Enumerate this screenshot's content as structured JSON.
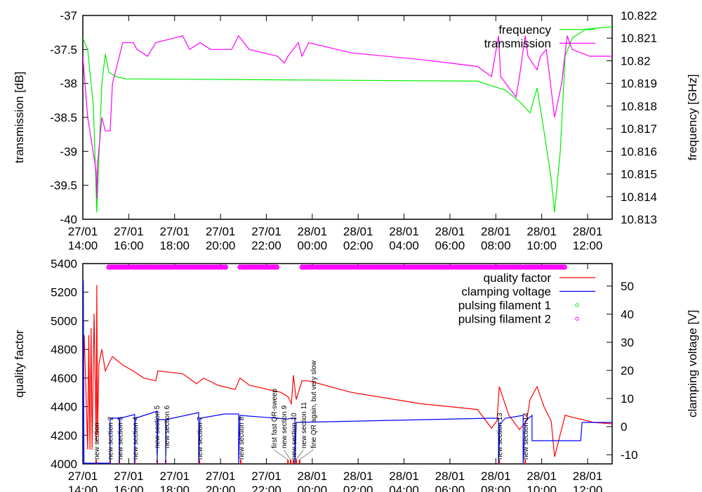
{
  "chart_data": [
    {
      "type": "line",
      "title": "",
      "xlabel": "",
      "ylabel": "transmission [dB]",
      "y2label": "frequency [GHz]",
      "x_unit": "hours since 27/01 14:00",
      "xlim": [
        0,
        23.07
      ],
      "ylim": [
        -40,
        -37
      ],
      "y2lim": [
        10.813,
        10.822
      ],
      "xticks": [
        {
          "v": 0,
          "d": "27/01",
          "t": "14:00"
        },
        {
          "v": 2,
          "d": "27/01",
          "t": "16:00"
        },
        {
          "v": 4,
          "d": "27/01",
          "t": "18:00"
        },
        {
          "v": 6,
          "d": "27/01",
          "t": "20:00"
        },
        {
          "v": 8,
          "d": "27/01",
          "t": "22:00"
        },
        {
          "v": 10,
          "d": "28/01",
          "t": "00:00"
        },
        {
          "v": 12,
          "d": "28/01",
          "t": "02:00"
        },
        {
          "v": 14,
          "d": "28/01",
          "t": "04:00"
        },
        {
          "v": 16,
          "d": "28/01",
          "t": "06:00"
        },
        {
          "v": 18,
          "d": "28/01",
          "t": "08:00"
        },
        {
          "v": 20,
          "d": "28/01",
          "t": "10:00"
        },
        {
          "v": 22,
          "d": "28/01",
          "t": "12:00"
        }
      ],
      "yticks": [
        "-37",
        "-37.5",
        "-38",
        "-38.5",
        "-39",
        "-39.5",
        "-40"
      ],
      "y2ticks": [
        "10.822",
        "10.821",
        "10.82",
        "10.819",
        "10.818",
        "10.817",
        "10.816",
        "10.815",
        "10.814",
        "10.813"
      ],
      "legend_position": "top-right",
      "series": [
        {
          "name": "frequency",
          "axis": "y2",
          "color": "#00ee00",
          "points": [
            [
              0,
              10.821
            ],
            [
              0.21,
              10.8205
            ],
            [
              0.46,
              10.818
            ],
            [
              0.61,
              10.8133
            ],
            [
              0.83,
              10.819
            ],
            [
              0.98,
              10.8203
            ],
            [
              1.13,
              10.8195
            ],
            [
              1.44,
              10.8193
            ],
            [
              1.9,
              10.8192
            ],
            [
              17.2,
              10.8191
            ],
            [
              17.81,
              10.8189
            ],
            [
              18.42,
              10.8187
            ],
            [
              19.03,
              10.8182
            ],
            [
              19.49,
              10.8177
            ],
            [
              19.8,
              10.8188
            ],
            [
              20.1,
              10.8169
            ],
            [
              20.41,
              10.8148
            ],
            [
              20.56,
              10.8133
            ],
            [
              20.81,
              10.816
            ],
            [
              21.02,
              10.8202
            ],
            [
              21.33,
              10.821
            ],
            [
              21.94,
              10.8214
            ],
            [
              23.07,
              10.8215
            ]
          ]
        },
        {
          "name": "transmission",
          "axis": "y",
          "color": "#ff00ff",
          "points": [
            [
              0,
              -37.6
            ],
            [
              0.21,
              -38.5
            ],
            [
              0.4,
              -38.9
            ],
            [
              0.58,
              -39.3
            ],
            [
              0.61,
              -39.7
            ],
            [
              0.64,
              -39.2
            ],
            [
              0.83,
              -38.5
            ],
            [
              0.98,
              -38.7
            ],
            [
              1.19,
              -38.7
            ],
            [
              1.29,
              -38.0
            ],
            [
              1.74,
              -37.4
            ],
            [
              2.2,
              -37.4
            ],
            [
              2.36,
              -37.5
            ],
            [
              2.82,
              -37.6
            ],
            [
              3.18,
              -37.4
            ],
            [
              4.35,
              -37.3
            ],
            [
              4.65,
              -37.5
            ],
            [
              5.11,
              -37.4
            ],
            [
              5.57,
              -37.5
            ],
            [
              6.49,
              -37.5
            ],
            [
              6.79,
              -37.3
            ],
            [
              7.25,
              -37.5
            ],
            [
              8.48,
              -37.6
            ],
            [
              8.78,
              -37.7
            ],
            [
              8.94,
              -37.6
            ],
            [
              9.39,
              -37.4
            ],
            [
              9.55,
              -37.6
            ],
            [
              9.85,
              -37.4
            ],
            [
              11.69,
              -37.55
            ],
            [
              14.75,
              -37.65
            ],
            [
              17.2,
              -37.75
            ],
            [
              17.81,
              -37.9
            ],
            [
              18.12,
              -37.3
            ],
            [
              18.21,
              -37.9
            ],
            [
              18.88,
              -38.2
            ],
            [
              19.03,
              -37.9
            ],
            [
              19.28,
              -37.3
            ],
            [
              19.4,
              -37.6
            ],
            [
              19.8,
              -37.8
            ],
            [
              19.95,
              -37.6
            ],
            [
              20.2,
              -37.5
            ],
            [
              20.56,
              -38.5
            ],
            [
              20.87,
              -38.0
            ],
            [
              21.11,
              -37.3
            ],
            [
              21.33,
              -37.5
            ],
            [
              22.09,
              -37.6
            ],
            [
              23.07,
              -37.6
            ]
          ]
        }
      ]
    },
    {
      "type": "line",
      "title": "",
      "xlabel": "",
      "ylabel": "quality factor",
      "y2label": "clamping voltage [V]",
      "x_unit": "hours since 27/01 14:00",
      "xlim": [
        0,
        23.07
      ],
      "ylim": [
        4000,
        5400
      ],
      "y2lim": [
        -13.25,
        58
      ],
      "xticks": [
        {
          "v": 0,
          "d": "27/01",
          "t": "14:00"
        },
        {
          "v": 2,
          "d": "27/01",
          "t": "16:00"
        },
        {
          "v": 4,
          "d": "27/01",
          "t": "18:00"
        },
        {
          "v": 6,
          "d": "27/01",
          "t": "20:00"
        },
        {
          "v": 8,
          "d": "27/01",
          "t": "22:00"
        },
        {
          "v": 10,
          "d": "28/01",
          "t": "00:00"
        },
        {
          "v": 12,
          "d": "28/01",
          "t": "02:00"
        },
        {
          "v": 14,
          "d": "28/01",
          "t": "04:00"
        },
        {
          "v": 16,
          "d": "28/01",
          "t": "06:00"
        },
        {
          "v": 18,
          "d": "28/01",
          "t": "08:00"
        },
        {
          "v": 20,
          "d": "28/01",
          "t": "10:00"
        },
        {
          "v": 22,
          "d": "28/01",
          "t": "12:00"
        }
      ],
      "yticks": [
        "5400",
        "5200",
        "5000",
        "4800",
        "4600",
        "4400",
        "4200",
        "4000"
      ],
      "y2ticks": [
        "50",
        "40",
        "30",
        "20",
        "10",
        "0",
        "-10"
      ],
      "legend_position": "top-right",
      "series": [
        {
          "name": "quality factor",
          "axis": "y",
          "color": "#ff0000",
          "points": [
            [
              0,
              4500
            ],
            [
              0.06,
              4900
            ],
            [
              0.21,
              4100
            ],
            [
              0.26,
              4900
            ],
            [
              0.31,
              4100
            ],
            [
              0.36,
              4950
            ],
            [
              0.4,
              4100
            ],
            [
              0.49,
              5050
            ],
            [
              0.58,
              4150
            ],
            [
              0.61,
              5250
            ],
            [
              0.64,
              4200
            ],
            [
              0.7,
              4700
            ],
            [
              0.83,
              4800
            ],
            [
              0.98,
              4650
            ],
            [
              1.13,
              4700
            ],
            [
              1.29,
              4750
            ],
            [
              1.74,
              4690
            ],
            [
              2.2,
              4650
            ],
            [
              2.66,
              4600
            ],
            [
              3.18,
              4580
            ],
            [
              3.27,
              4650
            ],
            [
              4.35,
              4630
            ],
            [
              4.96,
              4560
            ],
            [
              5.26,
              4600
            ],
            [
              5.88,
              4550
            ],
            [
              6.64,
              4520
            ],
            [
              6.85,
              4600
            ],
            [
              7.25,
              4550
            ],
            [
              8.63,
              4500
            ],
            [
              8.94,
              4470
            ],
            [
              9.09,
              4420
            ],
            [
              9.18,
              4620
            ],
            [
              9.3,
              4450
            ],
            [
              9.55,
              4580
            ],
            [
              9.85,
              4580
            ],
            [
              11.69,
              4500
            ],
            [
              14.75,
              4420
            ],
            [
              17.2,
              4380
            ],
            [
              17.81,
              4250
            ],
            [
              18.05,
              4300
            ],
            [
              18.15,
              4540
            ],
            [
              18.57,
              4340
            ],
            [
              19.03,
              4240
            ],
            [
              19.34,
              4300
            ],
            [
              19.49,
              4450
            ],
            [
              19.8,
              4540
            ],
            [
              20.1,
              4400
            ],
            [
              20.41,
              4300
            ],
            [
              20.56,
              4050
            ],
            [
              20.72,
              4150
            ],
            [
              21.02,
              4340
            ],
            [
              21.48,
              4320
            ],
            [
              21.79,
              4310
            ],
            [
              22.25,
              4290
            ],
            [
              23.07,
              4280
            ]
          ]
        },
        {
          "name": "clamping voltage",
          "axis": "y2",
          "color": "#0000ff",
          "points": [
            [
              0,
              -13
            ],
            [
              0.02,
              52
            ],
            [
              0.05,
              -13
            ],
            [
              1.19,
              -13
            ],
            [
              1.19,
              3
            ],
            [
              1.59,
              3
            ],
            [
              1.59,
              -13
            ],
            [
              1.62,
              3
            ],
            [
              2.26,
              4.3
            ],
            [
              2.26,
              -13
            ],
            [
              2.29,
              3
            ],
            [
              3.24,
              5.5
            ],
            [
              3.24,
              -13
            ],
            [
              3.27,
              2.5
            ],
            [
              3.61,
              2.5
            ],
            [
              3.61,
              -13
            ],
            [
              3.63,
              2.5
            ],
            [
              5.05,
              5
            ],
            [
              5.05,
              -13
            ],
            [
              5.11,
              3
            ],
            [
              6.18,
              4.5
            ],
            [
              6.79,
              4.5
            ],
            [
              6.79,
              -13
            ],
            [
              6.85,
              4
            ],
            [
              8.94,
              2.7
            ],
            [
              9.09,
              3
            ],
            [
              9.24,
              3
            ],
            [
              9.24,
              -13
            ],
            [
              9.3,
              1.5
            ],
            [
              17.81,
              3
            ],
            [
              18.12,
              3
            ],
            [
              18.12,
              -13
            ],
            [
              18.18,
              1
            ],
            [
              18.42,
              3
            ],
            [
              19.19,
              4
            ],
            [
              19.19,
              -13
            ],
            [
              19.28,
              2
            ],
            [
              19.58,
              4
            ],
            [
              19.58,
              -5
            ],
            [
              21.7,
              -5
            ],
            [
              21.76,
              1.5
            ],
            [
              23.07,
              1.5
            ]
          ]
        },
        {
          "name": "pulsing filament 1",
          "axis": "y",
          "color": "#00ee00",
          "segments": []
        },
        {
          "name": "pulsing filament 2",
          "axis": "y",
          "color": "#ff00ff",
          "value": 5375,
          "segments": [
            [
              1.13,
              5.05
            ],
            [
              5.11,
              6.24
            ],
            [
              6.85,
              8.48
            ],
            [
              9.55,
              19.19
            ],
            [
              19.25,
              21.02
            ]
          ]
        }
      ],
      "annotations": [
        {
          "x": 0.58,
          "text": "new section"
        },
        {
          "x": 1.19,
          "text": "new section 2"
        },
        {
          "x": 1.59,
          "text": "new section 3"
        },
        {
          "x": 2.26,
          "text": "new section 4"
        },
        {
          "x": 3.24,
          "text": "new section 5"
        },
        {
          "x": 3.61,
          "text": "new section 6"
        },
        {
          "x": 5.08,
          "text": "new section 7"
        },
        {
          "x": 6.88,
          "text": "new section 8"
        },
        {
          "x": 8.94,
          "text": "first fast QR-sweep"
        },
        {
          "x": 9.06,
          "text": "new section 9"
        },
        {
          "x": 9.18,
          "text": "new section 10"
        },
        {
          "x": 9.3,
          "text": "new section 11"
        },
        {
          "x": 9.45,
          "text": "fine QR again, but very slow"
        },
        {
          "x": 18.15,
          "text": "new section 13"
        },
        {
          "x": 19.28,
          "text": "new section 14"
        }
      ]
    }
  ]
}
